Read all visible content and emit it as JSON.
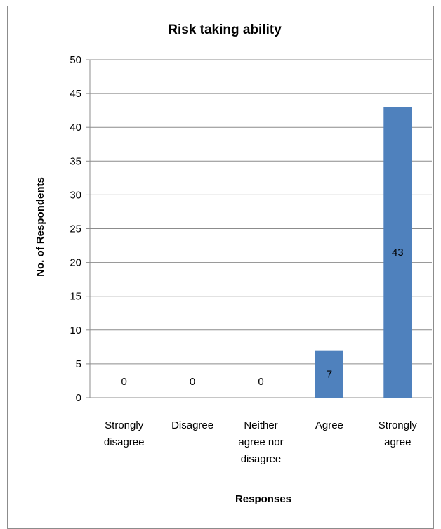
{
  "chart_data": {
    "type": "bar",
    "title": "Risk taking ability",
    "xlabel": "Responses",
    "ylabel": "No. of Respondents",
    "categories": [
      [
        "Strongly",
        "disagree"
      ],
      [
        "Disagree"
      ],
      [
        "Neither",
        "agree nor",
        "disagree"
      ],
      [
        "Agree"
      ],
      [
        "Strongly",
        "agree"
      ]
    ],
    "values": [
      0,
      0,
      0,
      7,
      43
    ],
    "data_labels": [
      "0",
      "0",
      "0",
      "7",
      "43"
    ],
    "ylim": [
      0,
      50
    ],
    "yticks": [
      0,
      5,
      10,
      15,
      20,
      25,
      30,
      35,
      40,
      45,
      50
    ],
    "grid": true,
    "bar_color": "#4f81bd",
    "grid_color": "#8c8c8c"
  }
}
